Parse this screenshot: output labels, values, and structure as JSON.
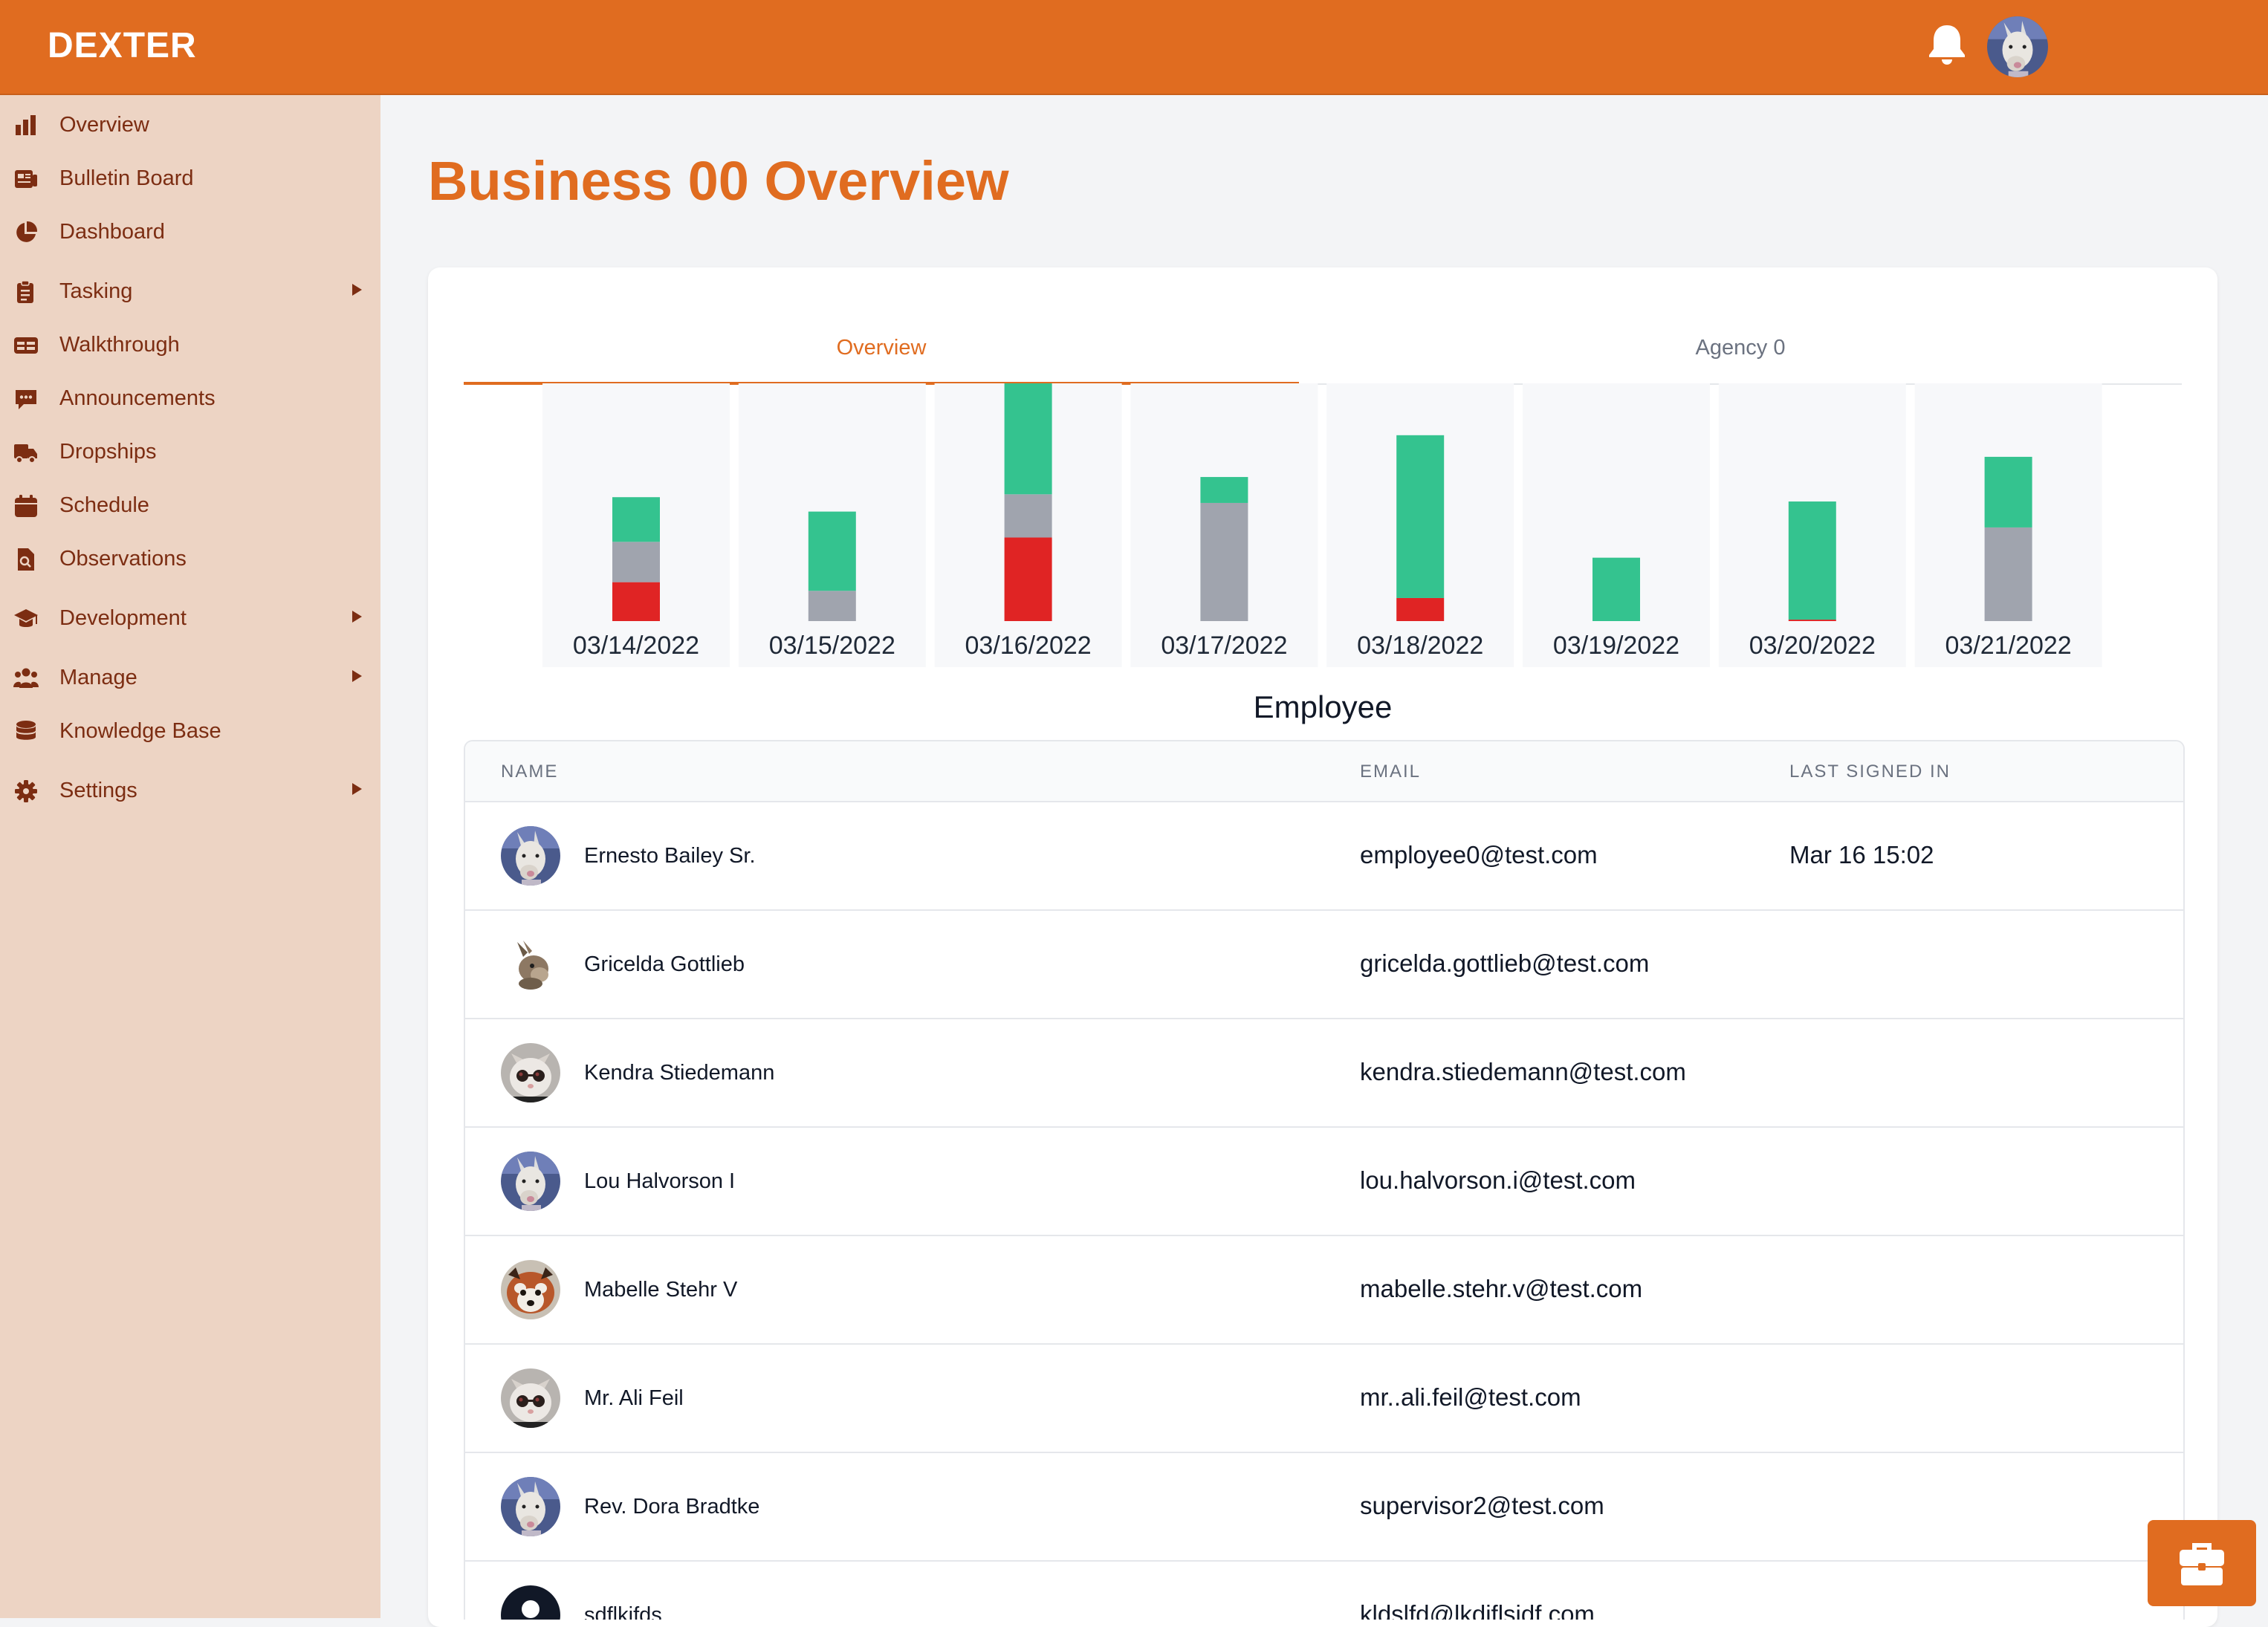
{
  "app": {
    "brand": "DEXTER"
  },
  "sidebar": {
    "items": [
      {
        "label": "Overview",
        "icon": "bar-chart-icon",
        "has_submenu": false
      },
      {
        "label": "Bulletin Board",
        "icon": "newspaper-icon",
        "has_submenu": false
      },
      {
        "label": "Dashboard",
        "icon": "pie-chart-icon",
        "has_submenu": false
      },
      {
        "label": "Tasking",
        "icon": "clipboard-icon",
        "has_submenu": true
      },
      {
        "label": "Walkthrough",
        "icon": "table-icon",
        "has_submenu": false
      },
      {
        "label": "Announcements",
        "icon": "chat-icon",
        "has_submenu": false
      },
      {
        "label": "Dropships",
        "icon": "truck-icon",
        "has_submenu": false
      },
      {
        "label": "Schedule",
        "icon": "calendar-icon",
        "has_submenu": false
      },
      {
        "label": "Observations",
        "icon": "file-search-icon",
        "has_submenu": false
      },
      {
        "label": "Development",
        "icon": "graduation-cap-icon",
        "has_submenu": true
      },
      {
        "label": "Manage",
        "icon": "users-icon",
        "has_submenu": true
      },
      {
        "label": "Knowledge Base",
        "icon": "database-icon",
        "has_submenu": false
      },
      {
        "label": "Settings",
        "icon": "gear-icon",
        "has_submenu": true
      }
    ]
  },
  "main": {
    "title": "Business 00 Overview",
    "tabs": [
      {
        "label": "Overview",
        "active": true
      },
      {
        "label": "Agency 0",
        "active": false
      }
    ],
    "section_title": "Employee"
  },
  "colors": {
    "accent": "#e06c20",
    "sidebar_bg": "#edd4c4",
    "sidebar_text": "#7c2d12",
    "series_green": "#34c38f",
    "series_gray": "#a0a4ae",
    "series_red": "#e02424"
  },
  "chart_data": {
    "type": "bar",
    "stacked": true,
    "categories": [
      "03/14/2022",
      "03/15/2022",
      "03/16/2022",
      "03/17/2022",
      "03/18/2022",
      "03/19/2022",
      "03/20/2022",
      "03/21/2022"
    ],
    "series": [
      {
        "color": "#e02424",
        "values": [
          27,
          0,
          58,
          0,
          16,
          0,
          1,
          0
        ]
      },
      {
        "color": "#a0a4ae",
        "values": [
          28,
          21,
          30,
          82,
          0,
          0,
          0,
          65
        ]
      },
      {
        "color": "#34c38f",
        "values": [
          31,
          55,
          77,
          18,
          113,
          44,
          82,
          49
        ]
      }
    ],
    "ylim": [
      0,
      165
    ],
    "grid": false,
    "legend": "none"
  },
  "table": {
    "headers": [
      "NAME",
      "EMAIL",
      "LAST SIGNED IN"
    ],
    "rows": [
      {
        "name": "Ernesto Bailey Sr.",
        "email": "employee0@test.com",
        "last_signed_in": "Mar 16 15:02",
        "avatar": "llama-avatar"
      },
      {
        "name": "Gricelda Gottlieb",
        "email": "gricelda.gottlieb@test.com",
        "last_signed_in": "",
        "avatar": "rabbit-avatar"
      },
      {
        "name": "Kendra Stiedemann",
        "email": "kendra.stiedemann@test.com",
        "last_signed_in": "",
        "avatar": "cat-sunglasses-avatar"
      },
      {
        "name": "Lou Halvorson I",
        "email": "lou.halvorson.i@test.com",
        "last_signed_in": "",
        "avatar": "llama-avatar"
      },
      {
        "name": "Mabelle Stehr V",
        "email": "mabelle.stehr.v@test.com",
        "last_signed_in": "",
        "avatar": "red-panda-avatar"
      },
      {
        "name": "Mr. Ali Feil",
        "email": "mr..ali.feil@test.com",
        "last_signed_in": "",
        "avatar": "cat-sunglasses-avatar"
      },
      {
        "name": "Rev. Dora Bradtke",
        "email": "supervisor2@test.com",
        "last_signed_in": "",
        "avatar": "llama-avatar"
      },
      {
        "name": "sdflkjfds",
        "email": "kldslfd@lkdjflsjdf.com",
        "last_signed_in": "",
        "avatar": "default-user-avatar"
      }
    ]
  },
  "fab": {
    "icon": "briefcase-icon"
  }
}
